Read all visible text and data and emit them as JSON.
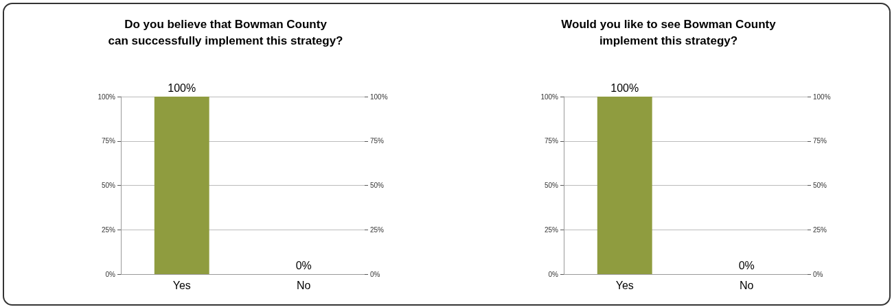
{
  "chart_data": [
    {
      "type": "bar",
      "title": "Do you believe that Bowman County\ncan successfully implement this strategy?",
      "categories": [
        "Yes",
        "No"
      ],
      "values": [
        100,
        0
      ],
      "colors": [
        "#8f9c3f",
        "#a4876b"
      ],
      "value_labels": [
        "100%",
        "0%"
      ],
      "ylim": [
        0,
        100
      ],
      "yticks": [
        {
          "value": 0,
          "label": "0%"
        },
        {
          "value": 25,
          "label": "25%"
        },
        {
          "value": 50,
          "label": "50%"
        },
        {
          "value": 75,
          "label": "75%"
        },
        {
          "value": 100,
          "label": "100%"
        }
      ],
      "y2lim": [
        0,
        100
      ],
      "y2ticks": [
        {
          "value": 0,
          "label": "0%"
        },
        {
          "value": 25,
          "label": "25%"
        },
        {
          "value": 50,
          "label": "50%"
        },
        {
          "value": 75,
          "label": "75%"
        },
        {
          "value": 100,
          "label": "100%"
        }
      ],
      "grid": "y"
    },
    {
      "type": "bar",
      "title": "Would you like to see Bowman County\nimplement this strategy?",
      "categories": [
        "Yes",
        "No"
      ],
      "values": [
        100,
        0
      ],
      "colors": [
        "#8f9c3f",
        "#a4876b"
      ],
      "value_labels": [
        "100%",
        "0%"
      ],
      "ylim": [
        0,
        100
      ],
      "yticks": [
        {
          "value": 0,
          "label": "0%"
        },
        {
          "value": 25,
          "label": "25%"
        },
        {
          "value": 50,
          "label": "50%"
        },
        {
          "value": 75,
          "label": "75%"
        },
        {
          "value": 100,
          "label": "100%"
        }
      ],
      "y2lim": [
        0,
        100
      ],
      "y2ticks": [
        {
          "value": 0,
          "label": "0%"
        },
        {
          "value": 25,
          "label": "25%"
        },
        {
          "value": 50,
          "label": "50%"
        },
        {
          "value": 75,
          "label": "75%"
        },
        {
          "value": 100,
          "label": "100%"
        }
      ],
      "grid": "y"
    }
  ]
}
